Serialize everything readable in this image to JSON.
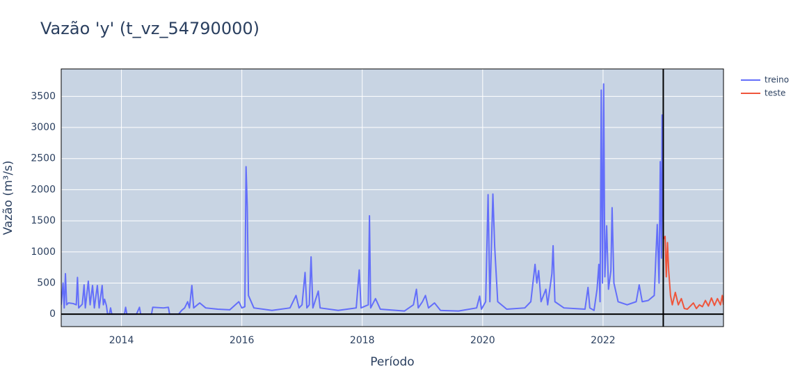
{
  "chart_data": {
    "type": "line",
    "title": "Vazão 'y' (t_vz_54790000)",
    "xlabel": "Período",
    "ylabel": "Vazão (m³/s)",
    "xlim": [
      2013,
      2024
    ],
    "xticks": [
      2014,
      2016,
      2018,
      2020,
      2022
    ],
    "ylim": [
      -200,
      3940
    ],
    "yticks": [
      0,
      500,
      1000,
      1500,
      2000,
      2500,
      3000,
      3500
    ],
    "grid": true,
    "legend": "outside-top-right",
    "split_x": 2023,
    "zeroline": true,
    "series": [
      {
        "name": "treino",
        "color": "#636efa",
        "x": [
          2013.0,
          2013.03,
          2013.05,
          2013.07,
          2013.09,
          2013.12,
          2013.2,
          2013.25,
          2013.27,
          2013.29,
          2013.35,
          2013.38,
          2013.4,
          2013.45,
          2013.48,
          2013.52,
          2013.55,
          2013.6,
          2013.63,
          2013.68,
          2013.7,
          2013.72,
          2013.75,
          2013.77,
          2013.8,
          2013.82,
          2013.84,
          2013.95,
          2014.05,
          2014.07,
          2014.09,
          2014.25,
          2014.3,
          2014.32,
          2014.5,
          2014.52,
          2014.7,
          2014.78,
          2014.8,
          2014.95,
          2015.0,
          2015.05,
          2015.1,
          2015.13,
          2015.17,
          2015.2,
          2015.3,
          2015.4,
          2015.6,
          2015.8,
          2015.95,
          2016.0,
          2016.05,
          2016.07,
          2016.09,
          2016.11,
          2016.2,
          2016.5,
          2016.8,
          2016.9,
          2016.95,
          2017.0,
          2017.05,
          2017.08,
          2017.12,
          2017.15,
          2017.18,
          2017.27,
          2017.3,
          2017.6,
          2017.9,
          2017.95,
          2017.98,
          2018.1,
          2018.12,
          2018.14,
          2018.22,
          2018.3,
          2018.7,
          2018.85,
          2018.9,
          2018.93,
          2019.0,
          2019.05,
          2019.1,
          2019.2,
          2019.3,
          2019.6,
          2019.9,
          2019.95,
          2019.98,
          2020.05,
          2020.09,
          2020.12,
          2020.17,
          2020.2,
          2020.25,
          2020.4,
          2020.7,
          2020.8,
          2020.87,
          2020.9,
          2020.93,
          2020.97,
          2021.05,
          2021.08,
          2021.15,
          2021.17,
          2021.2,
          2021.35,
          2021.7,
          2021.75,
          2021.78,
          2021.85,
          2021.9,
          2021.93,
          2021.95,
          2021.97,
          2021.99,
          2022.01,
          2022.03,
          2022.06,
          2022.09,
          2022.13,
          2022.15,
          2022.18,
          2022.25,
          2022.4,
          2022.55,
          2022.6,
          2022.65,
          2022.75,
          2022.85,
          2022.9,
          2022.93,
          2022.95,
          2022.97,
          2022.98,
          2023.0
        ],
        "values": [
          150,
          500,
          100,
          650,
          150,
          180,
          170,
          150,
          590,
          100,
          160,
          470,
          100,
          530,
          150,
          460,
          100,
          460,
          100,
          460,
          150,
          240,
          140,
          0,
          0,
          100,
          0,
          0,
          0,
          110,
          0,
          0,
          110,
          0,
          0,
          110,
          100,
          110,
          0,
          0,
          60,
          100,
          200,
          100,
          460,
          100,
          180,
          100,
          80,
          70,
          200,
          100,
          120,
          2370,
          1730,
          300,
          100,
          60,
          100,
          300,
          100,
          150,
          670,
          100,
          150,
          920,
          100,
          370,
          100,
          60,
          100,
          710,
          100,
          150,
          1580,
          100,
          250,
          80,
          50,
          150,
          400,
          100,
          200,
          300,
          100,
          180,
          60,
          50,
          100,
          290,
          80,
          200,
          1920,
          200,
          1930,
          1080,
          200,
          80,
          100,
          200,
          800,
          500,
          700,
          200,
          400,
          150,
          650,
          1100,
          200,
          100,
          80,
          430,
          100,
          60,
          400,
          800,
          200,
          3600,
          500,
          3700,
          600,
          1420,
          400,
          700,
          1710,
          500,
          200,
          150,
          200,
          470,
          200,
          220,
          300,
          1440,
          500,
          2450,
          900,
          3200,
          1200
        ]
      },
      {
        "name": "teste",
        "color": "#ef553b",
        "x": [
          2023.0,
          2023.03,
          2023.05,
          2023.07,
          2023.09,
          2023.12,
          2023.15,
          2023.2,
          2023.25,
          2023.3,
          2023.35,
          2023.4,
          2023.5,
          2023.55,
          2023.6,
          2023.65,
          2023.7,
          2023.75,
          2023.8,
          2023.85,
          2023.9,
          2023.95,
          2023.98,
          2024.0
        ],
        "values": [
          1200,
          1250,
          600,
          1150,
          700,
          300,
          150,
          350,
          150,
          250,
          90,
          80,
          180,
          90,
          150,
          120,
          220,
          130,
          260,
          140,
          250,
          150,
          300,
          150
        ]
      }
    ]
  }
}
